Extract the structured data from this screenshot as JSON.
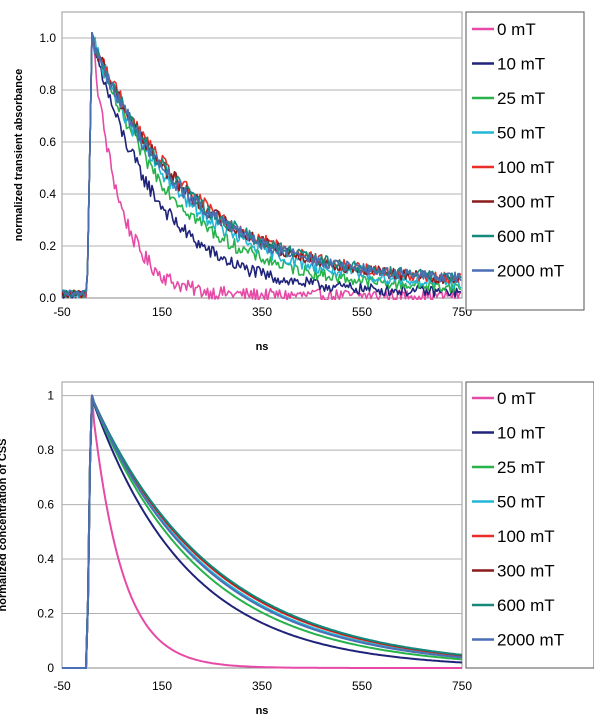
{
  "chart_data": [
    {
      "type": "line",
      "title": "",
      "xlabel": "ns",
      "ylabel": "normalized transient absorbance",
      "xlim": [
        -50,
        750
      ],
      "ylim": [
        0,
        1.1
      ],
      "x_ticks": [
        "-50",
        "150",
        "350",
        "550",
        "750"
      ],
      "y_ticks": [
        "0.0",
        "0.2",
        "0.4",
        "0.6",
        "0.8",
        "1.0"
      ],
      "grid": true,
      "legend_position": "right",
      "noisy": true,
      "series": [
        {
          "name": "0 mT",
          "color": "#e64aa6",
          "tau": 55,
          "base": 0.01
        },
        {
          "name": "10 mT",
          "color": "#1f237a",
          "tau": 130,
          "base": 0.02
        },
        {
          "name": "25 mT",
          "color": "#27b24a",
          "tau": 165,
          "base": 0.03
        },
        {
          "name": "50 mT",
          "color": "#22b5d5",
          "tau": 180,
          "base": 0.04
        },
        {
          "name": "100 mT",
          "color": "#ea2f28",
          "tau": 200,
          "base": 0.05
        },
        {
          "name": "300 mT",
          "color": "#8b1a1a",
          "tau": 195,
          "base": 0.05
        },
        {
          "name": "600 mT",
          "color": "#148a7c",
          "tau": 190,
          "base": 0.06
        },
        {
          "name": "2000 mT",
          "color": "#4a6fb5",
          "tau": 185,
          "base": 0.06
        }
      ],
      "rise_start": 0,
      "peak_x": 10
    },
    {
      "type": "line",
      "title": "",
      "xlabel": "ns",
      "ylabel": "normalized concentration of CSS",
      "xlim": [
        -50,
        750
      ],
      "ylim": [
        0,
        1.05
      ],
      "x_ticks": [
        "-50",
        "150",
        "350",
        "550",
        "750"
      ],
      "y_ticks": [
        "0",
        "0.2",
        "0.4",
        "0.6",
        "0.8",
        "1"
      ],
      "grid": true,
      "legend_position": "right",
      "noisy": false,
      "series": [
        {
          "name": "0 mT",
          "color": "#e64aa6",
          "tau": 60,
          "base": 0.0
        },
        {
          "name": "10 mT",
          "color": "#1f237a",
          "tau": 190,
          "base": 0.0
        },
        {
          "name": "25 mT",
          "color": "#27b24a",
          "tau": 215,
          "base": 0.0
        },
        {
          "name": "50 mT",
          "color": "#22b5d5",
          "tau": 232,
          "base": 0.0
        },
        {
          "name": "100 mT",
          "color": "#ea2f28",
          "tau": 240,
          "base": 0.0
        },
        {
          "name": "300 mT",
          "color": "#8b1a1a",
          "tau": 243,
          "base": 0.0
        },
        {
          "name": "600 mT",
          "color": "#148a7c",
          "tau": 245,
          "base": 0.0
        },
        {
          "name": "2000 mT",
          "color": "#4a6fb5",
          "tau": 228,
          "base": 0.0
        }
      ],
      "rise_start": 0,
      "peak_x": 8
    }
  ]
}
